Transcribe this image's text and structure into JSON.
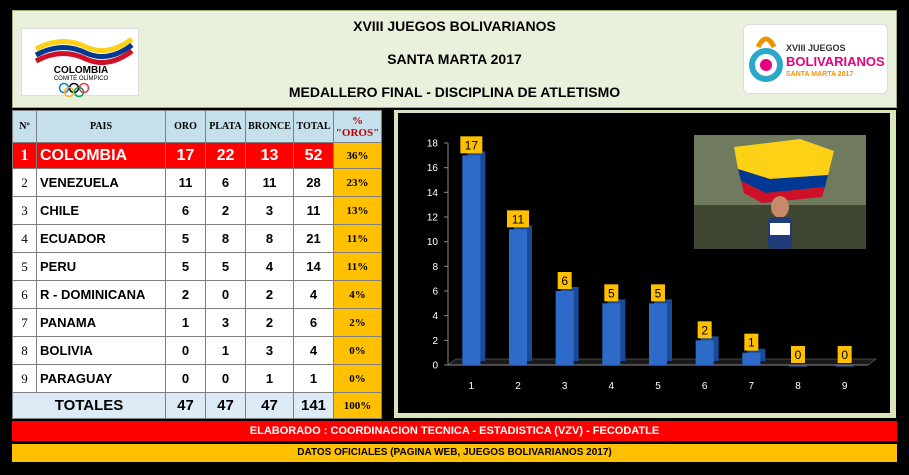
{
  "header": {
    "line1": "XVIII JUEGOS BOLIVARIANOS",
    "line2": "SANTA MARTA 2017",
    "line3": "MEDALLERO FINAL - DISCIPLINA DE ATLETISMO",
    "logo_left": {
      "line1": "COLOMBIA",
      "line2": "COMITÉ OLÍMPICO"
    },
    "logo_right": {
      "line1": "XVIII JUEGOS",
      "line2": "BOLIVARIANOS",
      "line3": "SANTA MARTA 2017"
    }
  },
  "table": {
    "headers": {
      "rank": "Nº",
      "country": "PAIS",
      "gold": "ORO",
      "silver": "PLATA",
      "bronze": "BRONCE",
      "total": "TOTAL",
      "pct": "% \"OROS\""
    },
    "rows": [
      {
        "rank": "1",
        "country": "COLOMBIA",
        "gold": "17",
        "silver": "22",
        "bronze": "13",
        "total": "52",
        "pct": "36%"
      },
      {
        "rank": "2",
        "country": "VENEZUELA",
        "gold": "11",
        "silver": "6",
        "bronze": "11",
        "total": "28",
        "pct": "23%"
      },
      {
        "rank": "3",
        "country": "CHILE",
        "gold": "6",
        "silver": "2",
        "bronze": "3",
        "total": "11",
        "pct": "13%"
      },
      {
        "rank": "4",
        "country": "ECUADOR",
        "gold": "5",
        "silver": "8",
        "bronze": "8",
        "total": "21",
        "pct": "11%"
      },
      {
        "rank": "5",
        "country": "PERU",
        "gold": "5",
        "silver": "5",
        "bronze": "4",
        "total": "14",
        "pct": "11%"
      },
      {
        "rank": "6",
        "country": "R - DOMINICANA",
        "gold": "2",
        "silver": "0",
        "bronze": "2",
        "total": "4",
        "pct": "4%"
      },
      {
        "rank": "7",
        "country": "PANAMA",
        "gold": "1",
        "silver": "3",
        "bronze": "2",
        "total": "6",
        "pct": "2%"
      },
      {
        "rank": "8",
        "country": "BOLIVIA",
        "gold": "0",
        "silver": "1",
        "bronze": "3",
        "total": "4",
        "pct": "0%"
      },
      {
        "rank": "9",
        "country": "PARAGUAY",
        "gold": "0",
        "silver": "0",
        "bronze": "1",
        "total": "1",
        "pct": "0%"
      }
    ],
    "totals": {
      "label": "TOTALES",
      "gold": "47",
      "silver": "47",
      "bronze": "47",
      "total": "141",
      "pct": "100%"
    }
  },
  "chart_data": {
    "type": "bar",
    "categories": [
      "1",
      "2",
      "3",
      "4",
      "5",
      "6",
      "7",
      "8",
      "9"
    ],
    "values": [
      17,
      11,
      6,
      5,
      5,
      2,
      1,
      0,
      0
    ],
    "title": "",
    "xlabel": "",
    "ylabel": "",
    "ylim": [
      0,
      18
    ],
    "yticks": [
      "0",
      "2",
      "4",
      "6",
      "8",
      "10",
      "12",
      "14",
      "16",
      "18"
    ],
    "grid": false,
    "bar_color": "#2e6bc9",
    "label_bg": "#ffc000"
  },
  "footer": {
    "line1": "ELABORADO : COORDINACION TECNICA - ESTADISTICA (VZV) - FECODATLE",
    "line2": "DATOS OFICIALES (PAGINA WEB, JUEGOS BOLIVARIANOS 2017)"
  }
}
